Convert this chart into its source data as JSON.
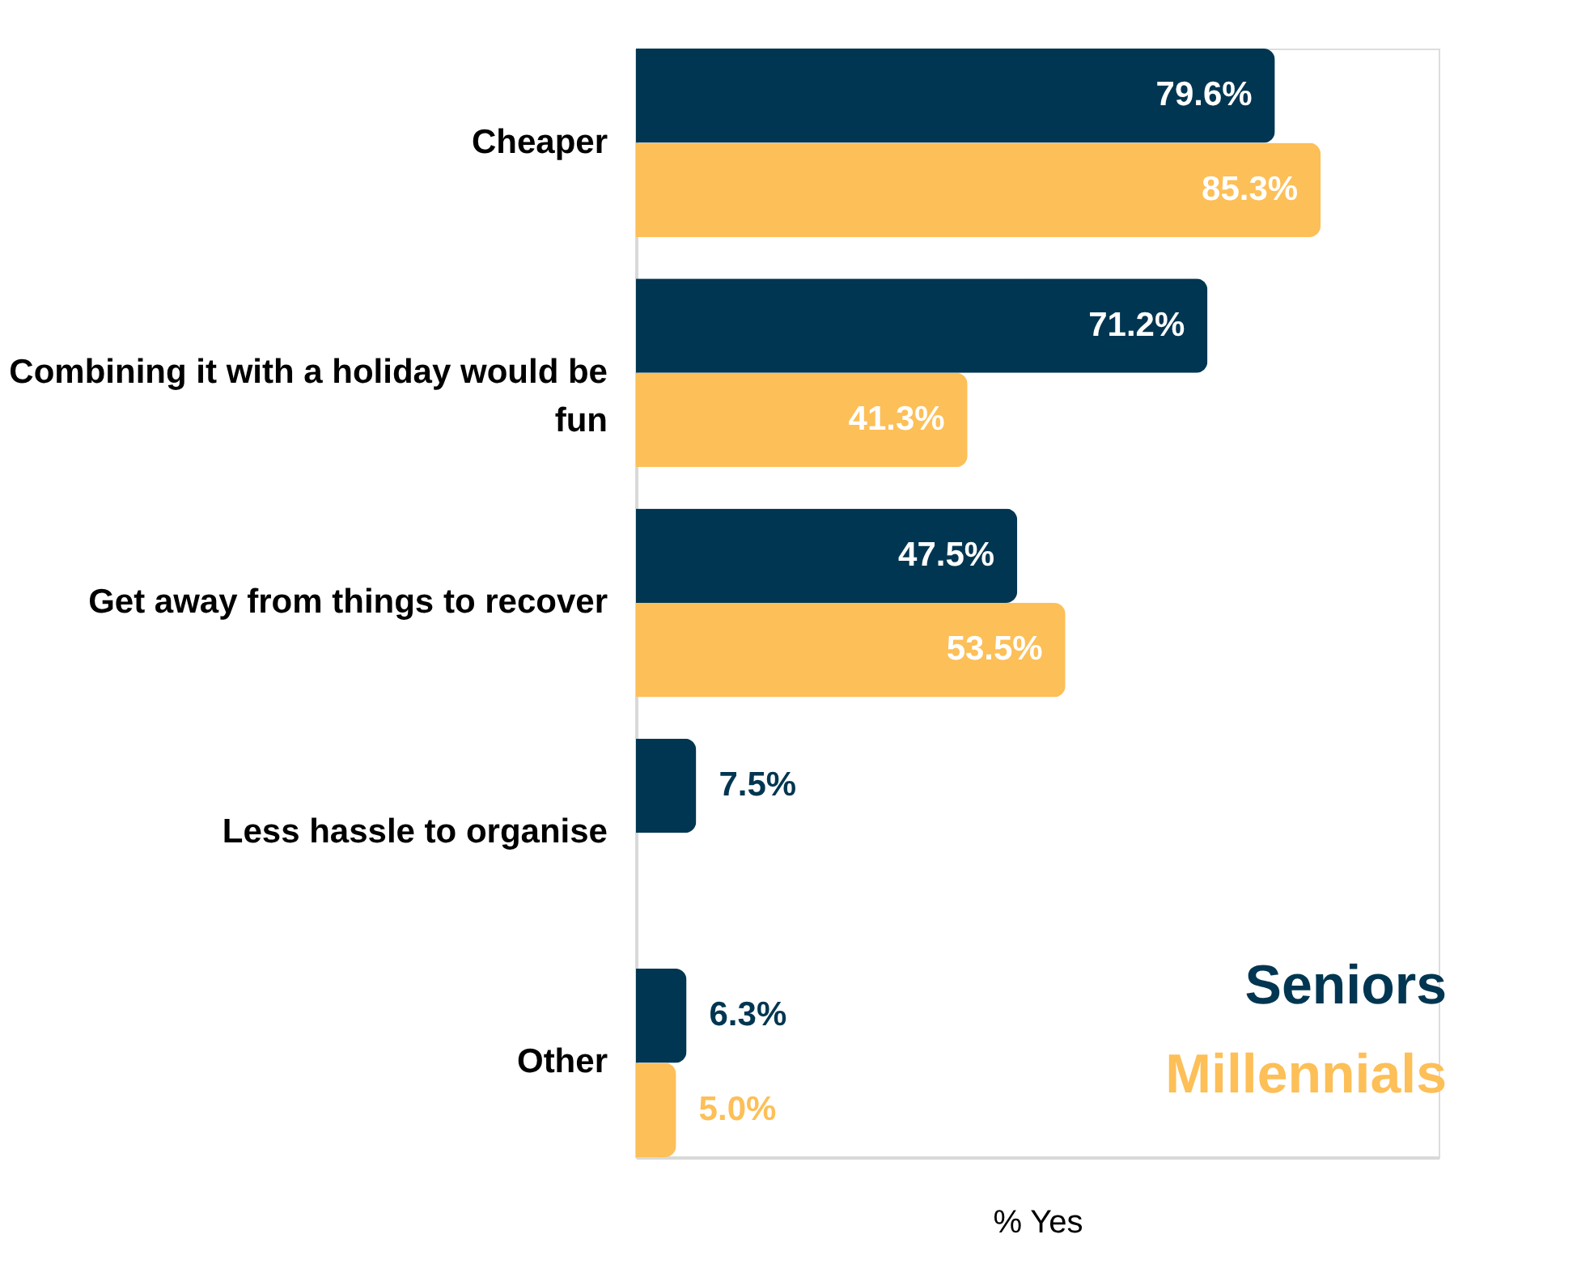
{
  "chart_data": {
    "type": "bar",
    "orientation": "horizontal",
    "xlabel": "% Yes",
    "categories": [
      "Cheaper",
      "Combining it with a holiday would be fun",
      "Get away from things to recover",
      "Less hassle to organise",
      "Other"
    ],
    "series": [
      {
        "name": "Seniors",
        "color": "#003651",
        "values": [
          79.6,
          71.2,
          47.5,
          7.5,
          6.3
        ],
        "value_labels": [
          "79.6%",
          "71.2%",
          "47.5%",
          "7.5%",
          "6.3%"
        ]
      },
      {
        "name": "Millennials",
        "color": "#fdbf57",
        "values": [
          85.3,
          41.3,
          53.5,
          null,
          5.0
        ],
        "value_labels": [
          "85.3%",
          "41.3%",
          "53.5%",
          null,
          "5.0%"
        ]
      }
    ],
    "xlim": [
      0,
      100
    ],
    "tick_labels": "y",
    "grid": false,
    "legend": "bottom right"
  }
}
